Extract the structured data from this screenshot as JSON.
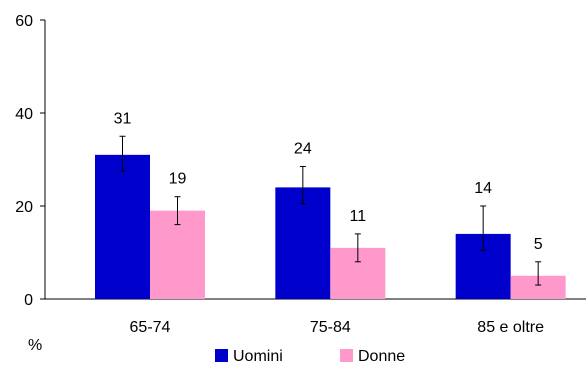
{
  "chart_data": {
    "type": "bar",
    "categories": [
      "65-74",
      "75-84",
      "85 e oltre"
    ],
    "series": [
      {
        "name": "Uomini",
        "color": "#0000CC",
        "values": [
          31,
          24,
          14
        ],
        "err_low": [
          27.5,
          20.5,
          10.5
        ],
        "err_high": [
          35,
          28.5,
          20
        ]
      },
      {
        "name": "Donne",
        "color": "#FF99CC",
        "values": [
          19,
          11,
          5
        ],
        "err_low": [
          16,
          8,
          3
        ],
        "err_high": [
          22,
          14,
          8
        ]
      }
    ],
    "data_labels": [
      [
        "31",
        "24",
        "14"
      ],
      [
        "19",
        "11",
        "5"
      ]
    ],
    "ylim": [
      0,
      60
    ],
    "yticks": [
      0,
      20,
      40,
      60
    ],
    "ytick_labels": [
      "0",
      "20",
      "40",
      "60"
    ],
    "y_unit_label": "%",
    "legend_position": "bottom",
    "grid": false
  }
}
